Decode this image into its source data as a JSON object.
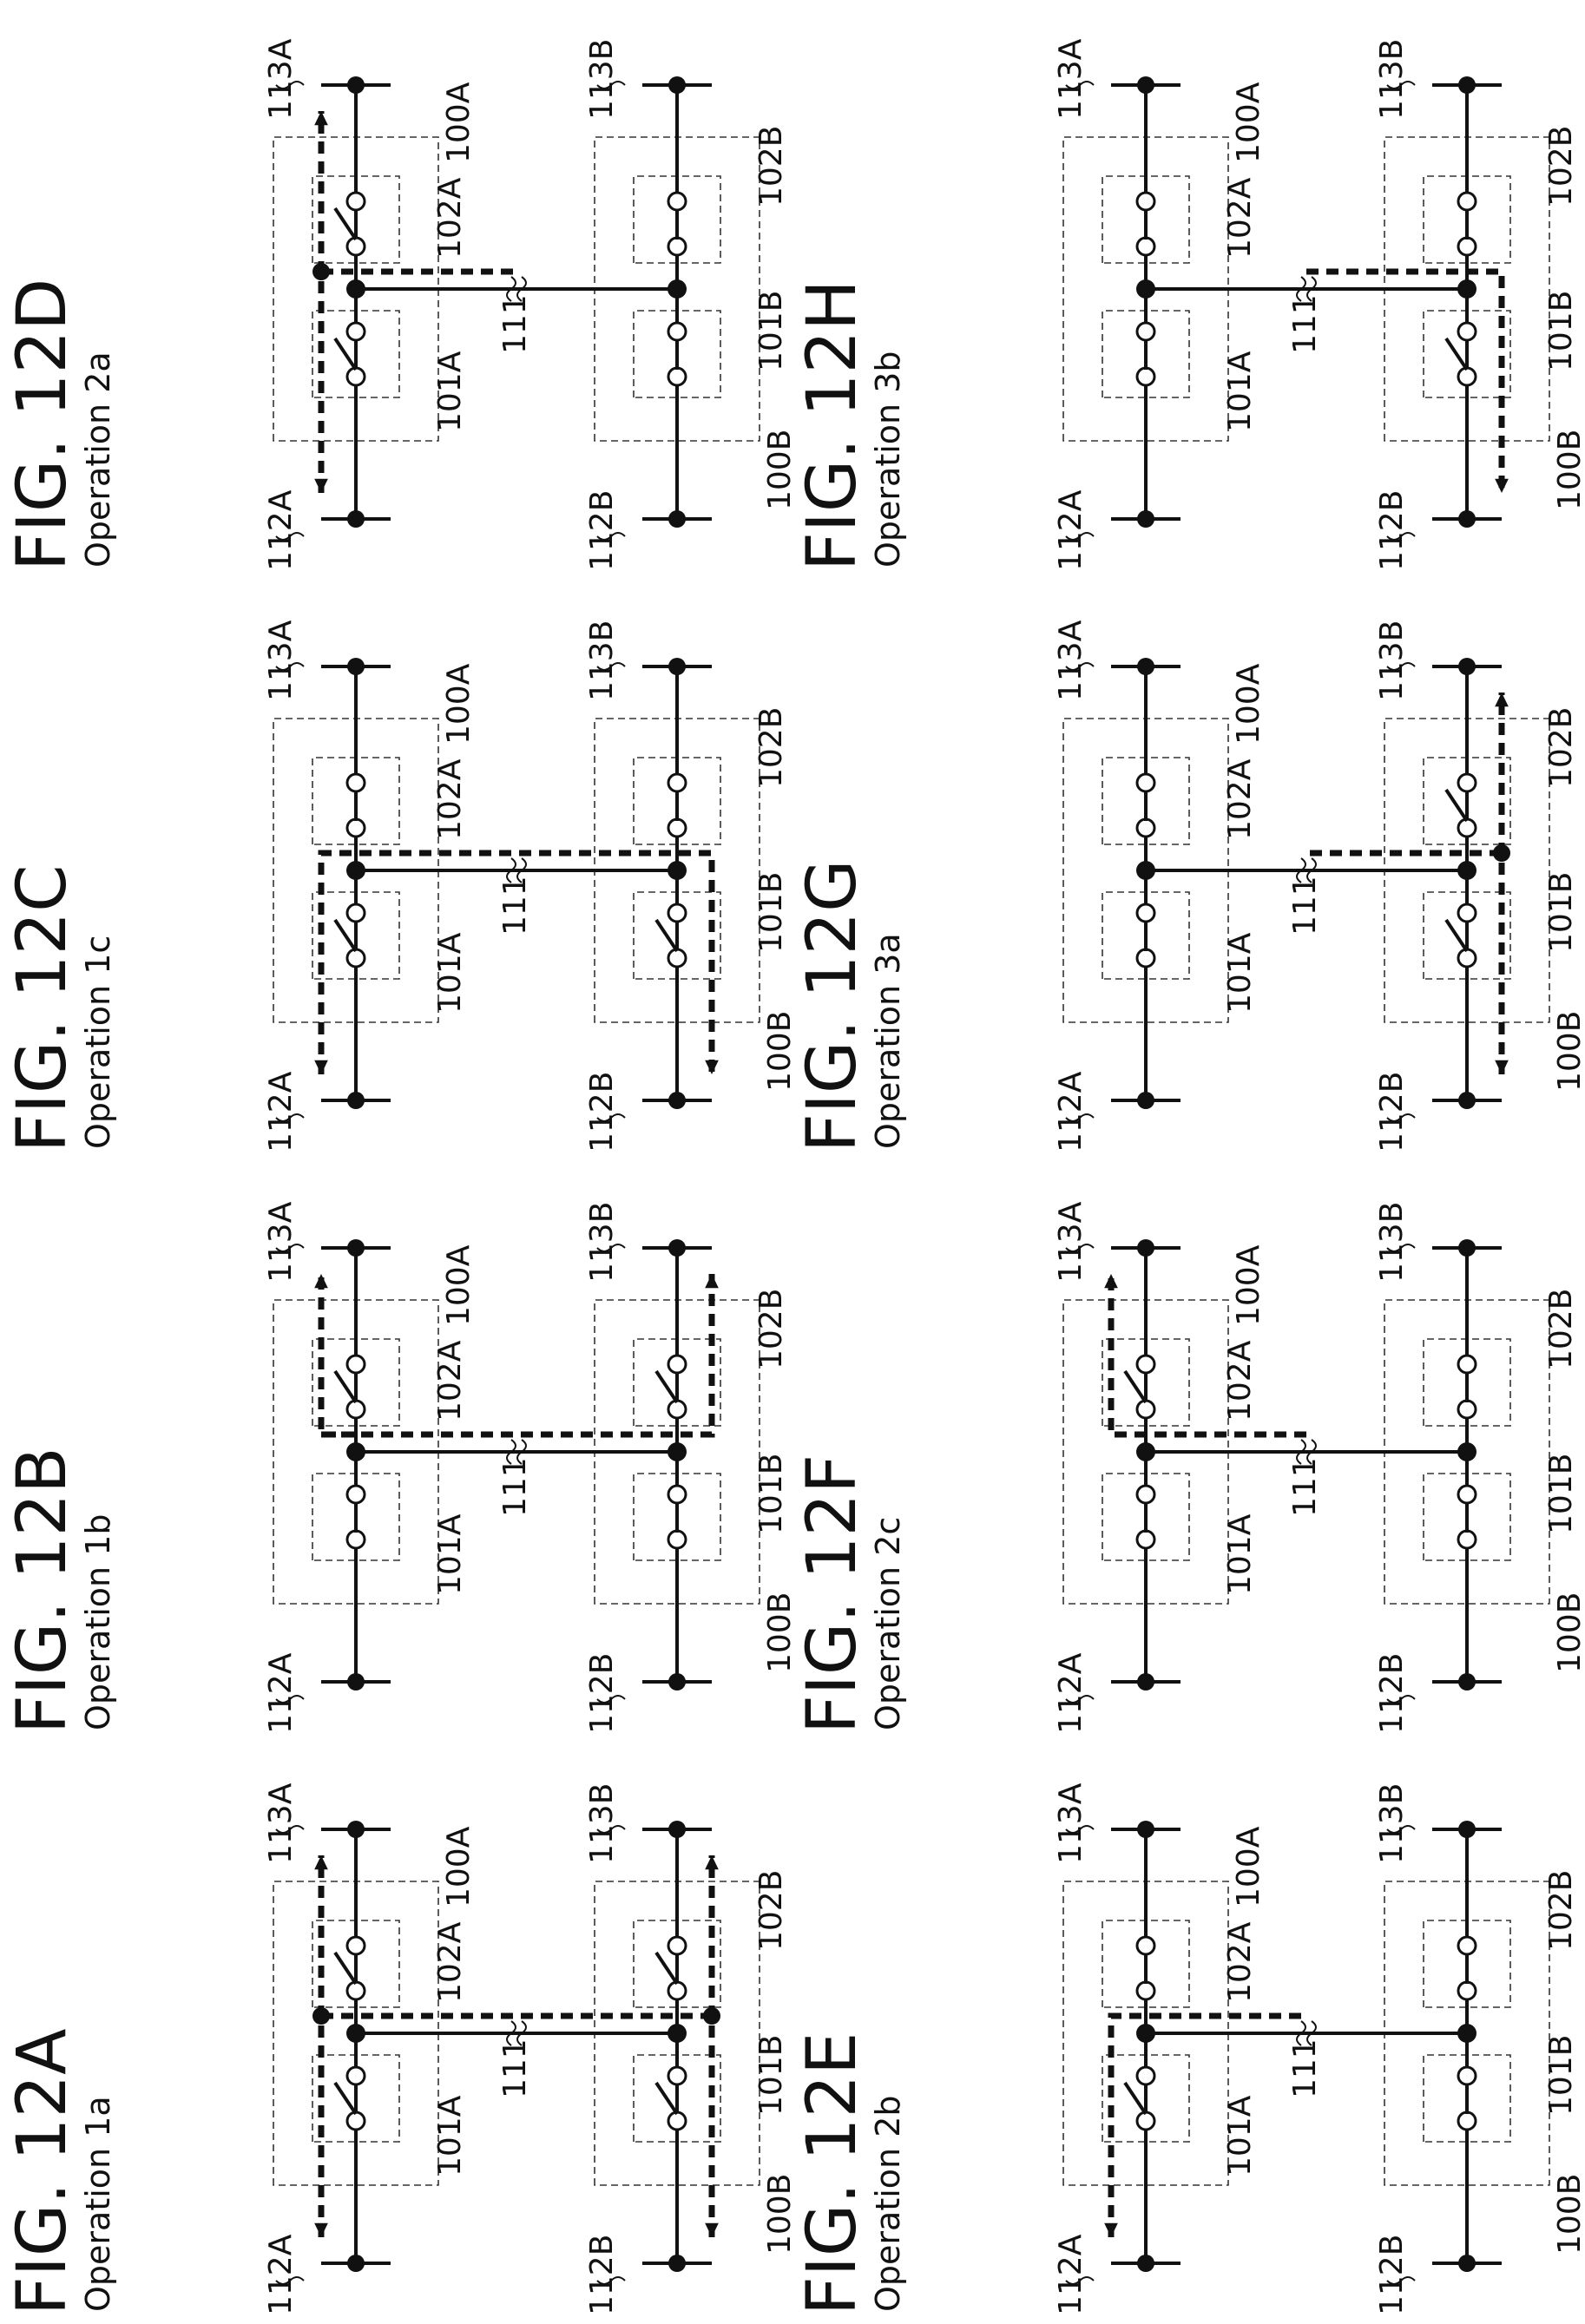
{
  "figures": [
    {
      "id": "A",
      "title": "FIG. 12A",
      "op": "Operation 1a",
      "sw": {
        "101A": 0,
        "101B": 0,
        "102A": 0,
        "102B": 0
      }
    },
    {
      "id": "B",
      "title": "FIG. 12B",
      "op": "Operation 1b",
      "sw": {
        "101A": 1,
        "101B": 1,
        "102A": 0,
        "102B": 0
      }
    },
    {
      "id": "C",
      "title": "FIG. 12C",
      "op": "Operation 1c",
      "sw": {
        "101A": 0,
        "101B": 0,
        "102A": 1,
        "102B": 1
      }
    },
    {
      "id": "D",
      "title": "FIG. 12D",
      "op": "Operation 2a",
      "sw": {
        "101A": 0,
        "101B": 1,
        "102A": 0,
        "102B": 1
      }
    },
    {
      "id": "E",
      "title": "FIG. 12E",
      "op": "Operation 2b",
      "sw": {
        "101A": 0,
        "101B": 1,
        "102A": 1,
        "102B": 1
      }
    },
    {
      "id": "F",
      "title": "FIG. 12F",
      "op": "Operation 2c",
      "sw": {
        "101A": 1,
        "101B": 1,
        "102A": 0,
        "102B": 1
      }
    },
    {
      "id": "G",
      "title": "FIG. 12G",
      "op": "Operation 3a",
      "sw": {
        "101A": 1,
        "101B": 0,
        "102A": 1,
        "102B": 0
      }
    },
    {
      "id": "H",
      "title": "FIG. 12H",
      "op": "Operation 3b",
      "sw": {
        "101A": 1,
        "101B": 0,
        "102A": 1,
        "102B": 1
      }
    }
  ],
  "labels": {
    "bus_left_top": "112A",
    "bus_right_top": "112B",
    "bus_left_bottom": "113A",
    "bus_right_bottom": "113B",
    "module_left": "100A",
    "module_right": "100B",
    "switch_left_top": "101A",
    "switch_right_top": "101B",
    "switch_left_bottom": "102A",
    "switch_right_bottom": "102B",
    "link": "111"
  }
}
